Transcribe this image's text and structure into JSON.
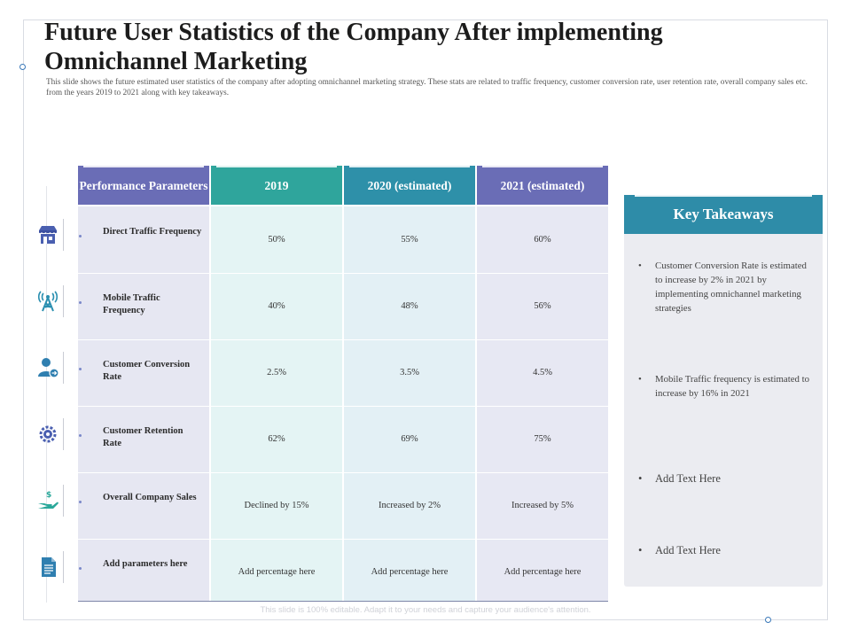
{
  "title": "Future User Statistics of the Company After implementing Omnichannel Marketing",
  "subtitle": "This slide shows the future estimated user statistics of the company after adopting omnichannel marketing strategy. These stats are related to traffic frequency, customer conversion rate, user retention rate, overall company sales etc. from the years 2019 to 2021 along with key takeaways.",
  "table": {
    "headers": [
      "Performance Parameters",
      "2019",
      "2020 (estimated)",
      "2021 (estimated)"
    ],
    "header_colors": [
      "#6a6db6",
      "#2fa59c",
      "#2e90a9",
      "#6a6db6"
    ],
    "rows": [
      {
        "icon": "store-icon",
        "param": "Direct Traffic Frequency",
        "v2019": "50%",
        "v2020": "55%",
        "v2021": "60%"
      },
      {
        "icon": "signal-tower-icon",
        "param": "Mobile Traffic Frequency",
        "v2019": "40%",
        "v2020": "48%",
        "v2021": "56%"
      },
      {
        "icon": "user-conversion-icon",
        "param": "Customer Conversion Rate",
        "v2019": "2.5%",
        "v2020": "3.5%",
        "v2021": "4.5%"
      },
      {
        "icon": "retention-gear-icon",
        "param": "Customer Retention Rate",
        "v2019": "62%",
        "v2020": "69%",
        "v2021": "75%"
      },
      {
        "icon": "hand-money-icon",
        "param": "Overall Company Sales",
        "v2019": "Declined by 15%",
        "v2020": "Increased by 2%",
        "v2021": "Increased by 5%"
      },
      {
        "icon": "document-icon",
        "param": "Add parameters here",
        "v2019": "Add percentage here",
        "v2020": "Add percentage here",
        "v2021": "Add percentage here"
      }
    ]
  },
  "key_takeaways": {
    "title": "Key Takeaways",
    "items": [
      "Customer Conversion Rate is estimated to increase  by 2% in 2021 by implementing omnichannel marketing strategies",
      "Mobile Traffic frequency  is estimated to increase  by 16% in 2021",
      "Add Text Here",
      "Add Text Here"
    ]
  },
  "footer": "This slide is 100% editable. Adapt it to your needs and capture your audience's attention."
}
